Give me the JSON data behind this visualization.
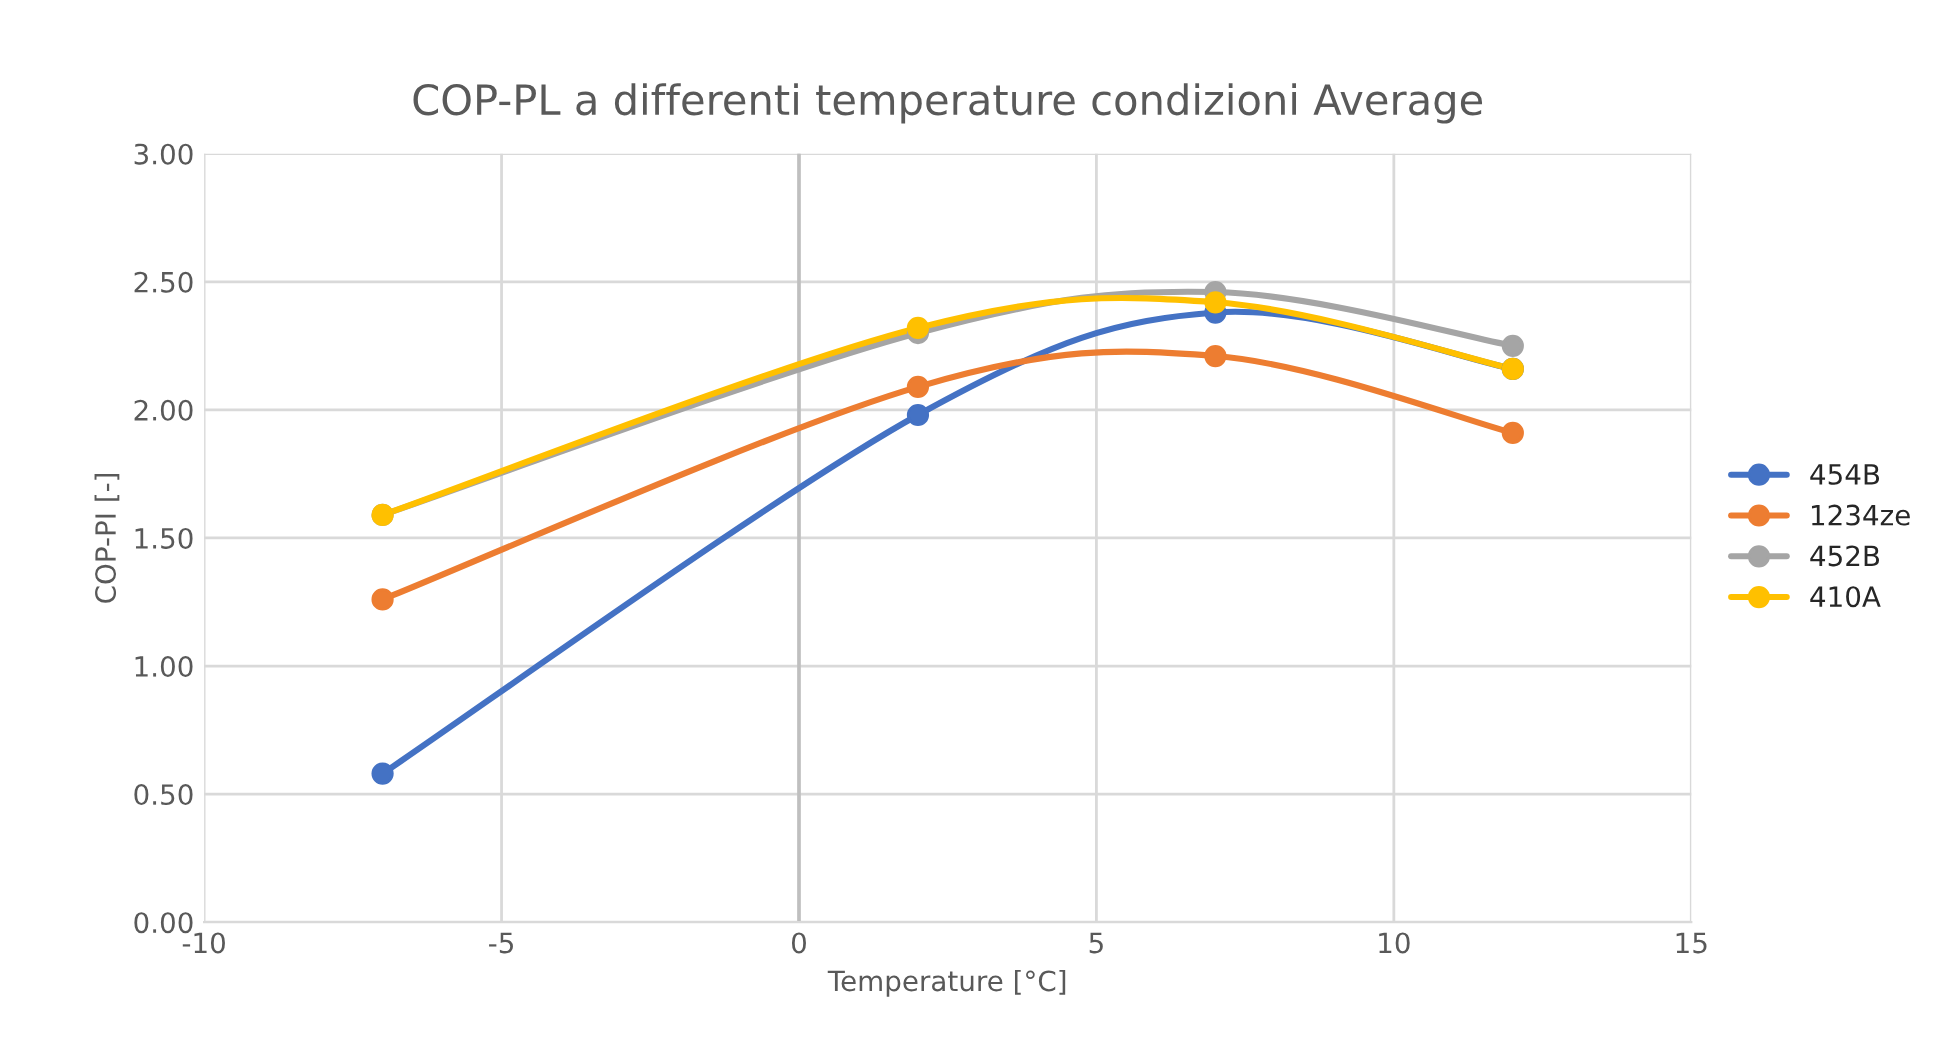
{
  "chart_data": {
    "type": "line",
    "title": "COP-PL a differenti temperature condizioni Average",
    "xlabel": "Temperature [°C]",
    "ylabel": "COP-PI [-]",
    "x": [
      -7,
      2,
      7,
      12
    ],
    "series": [
      {
        "name": "454B",
        "color": "#4472c4",
        "values": [
          0.58,
          1.98,
          2.38,
          2.16
        ]
      },
      {
        "name": "1234ze",
        "color": "#ed7d31",
        "values": [
          1.26,
          2.09,
          2.21,
          1.91
        ]
      },
      {
        "name": "452B",
        "color": "#a5a5a5",
        "values": [
          1.59,
          2.3,
          2.46,
          2.25
        ]
      },
      {
        "name": "410A",
        "color": "#ffc000",
        "values": [
          1.59,
          2.32,
          2.42,
          2.16
        ]
      }
    ],
    "xlim": [
      -10,
      15
    ],
    "xticks": [
      -10,
      -5,
      0,
      5,
      10,
      15
    ],
    "ylim": [
      0,
      3
    ],
    "yticks": [
      {
        "value": 0,
        "label": "0.00"
      },
      {
        "value": 0.5,
        "label": "0.50"
      },
      {
        "value": 1,
        "label": "1.00"
      },
      {
        "value": 1.5,
        "label": "1.50"
      },
      {
        "value": 2,
        "label": "2.00"
      },
      {
        "value": 2.5,
        "label": "2.50"
      },
      {
        "value": 3,
        "label": "3.00"
      }
    ],
    "ref_lines": [
      {
        "axis": "x",
        "value": 0,
        "color": "#bfbfbf"
      }
    ],
    "grid": true,
    "legend": "right",
    "marker": "circle",
    "line_style": "solid"
  }
}
